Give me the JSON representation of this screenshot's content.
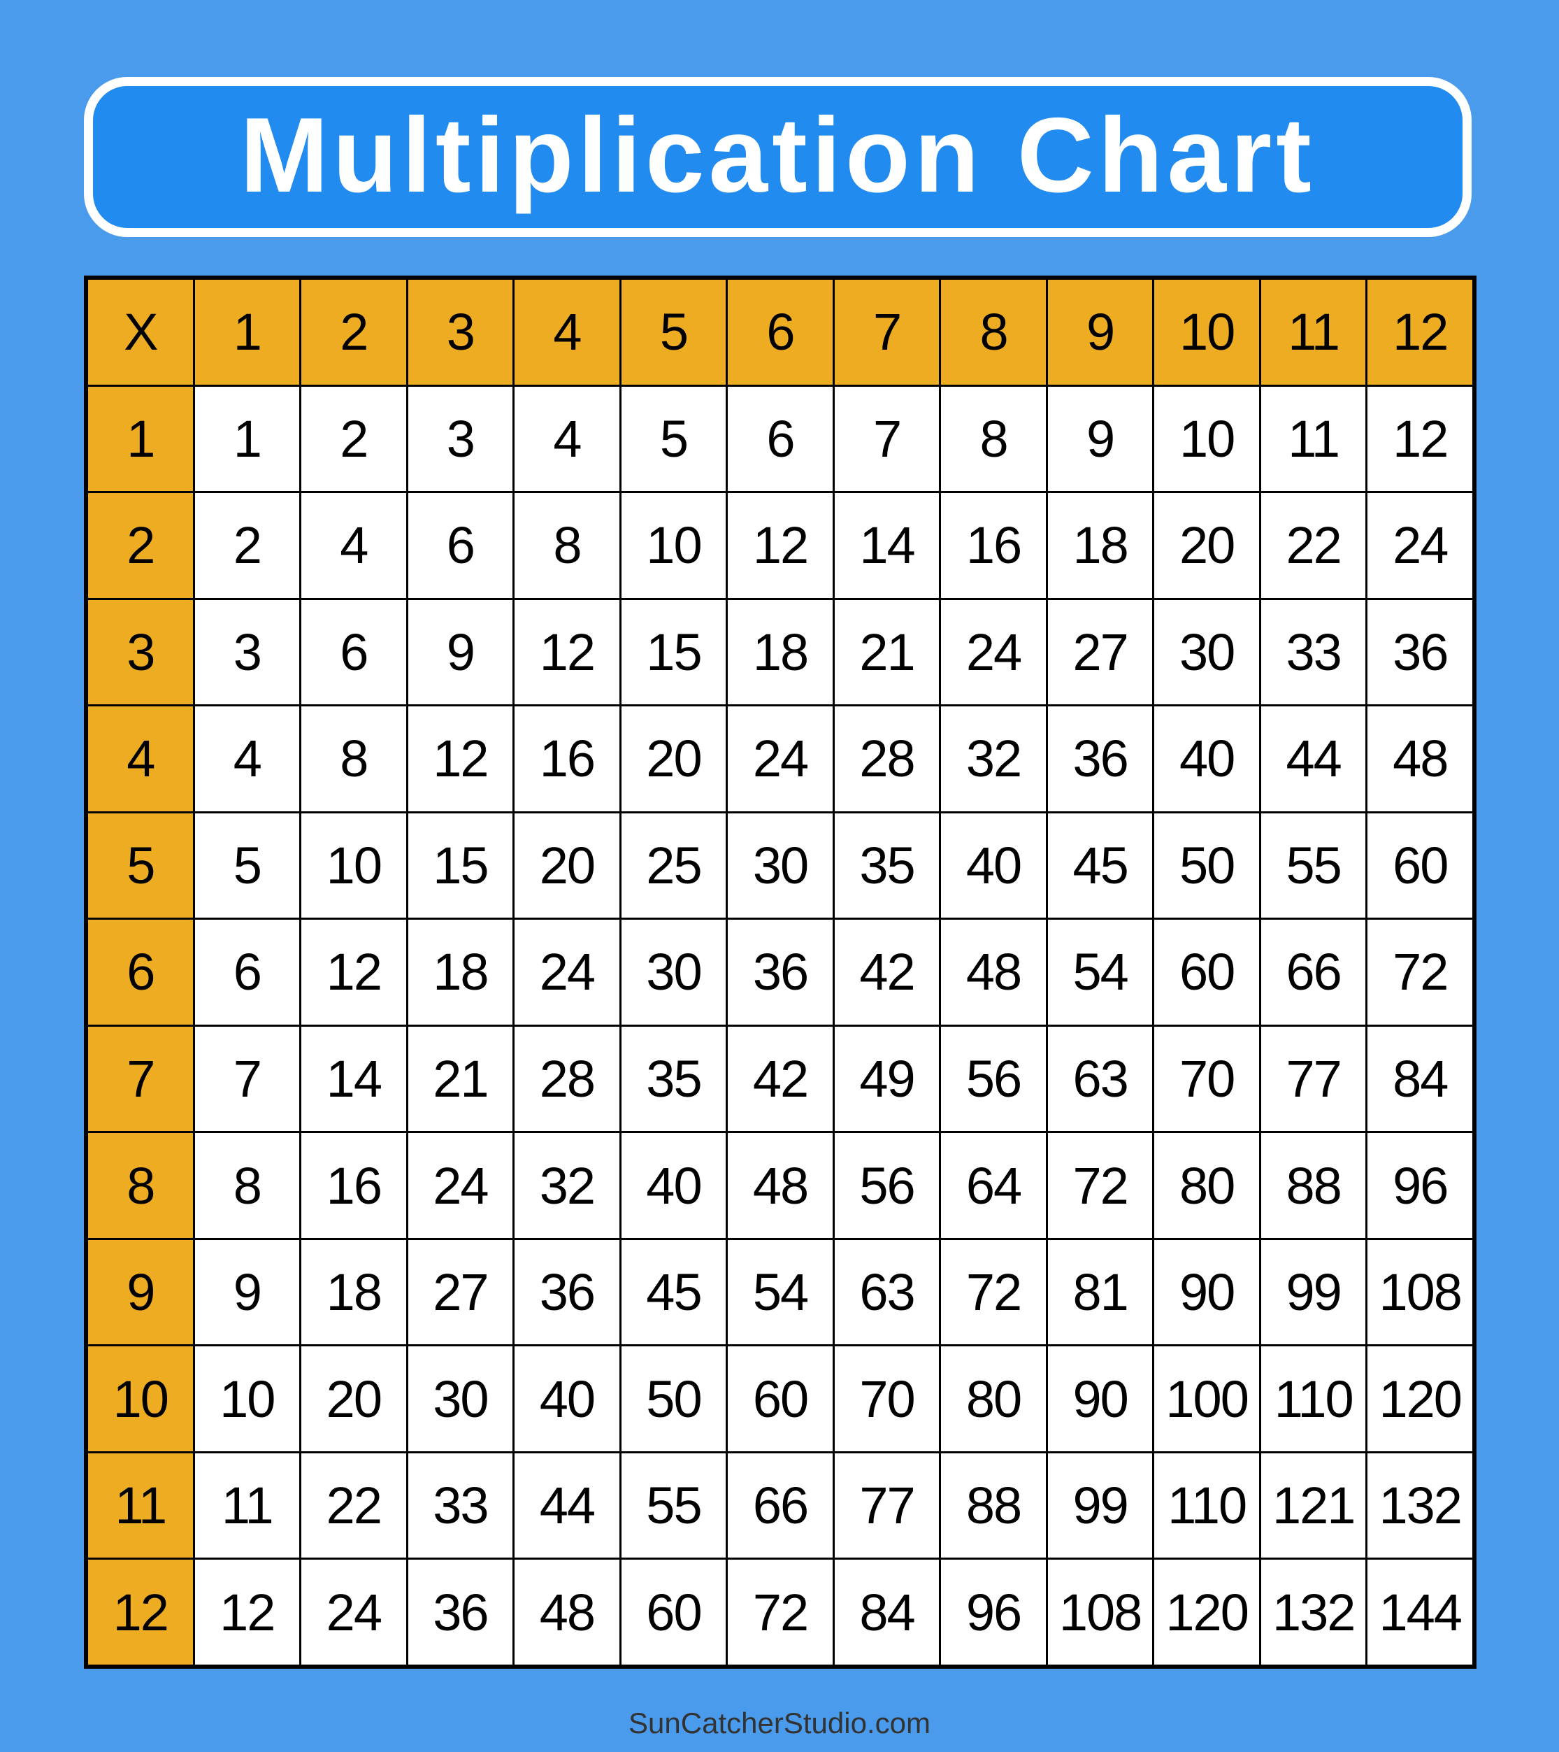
{
  "title": "Multiplication Chart",
  "footer": "SunCatcherStudio.com",
  "colors": {
    "background": "#4a9bec",
    "title_box": "#218bef",
    "header": "#eeac22",
    "cell": "#ffffff",
    "grid": "#000000"
  },
  "chart_data": {
    "type": "table",
    "corner": "X",
    "column_headers": [
      "1",
      "2",
      "3",
      "4",
      "5",
      "6",
      "7",
      "8",
      "9",
      "10",
      "11",
      "12"
    ],
    "row_headers": [
      "1",
      "2",
      "3",
      "4",
      "5",
      "6",
      "7",
      "8",
      "9",
      "10",
      "11",
      "12"
    ],
    "rows": [
      [
        1,
        2,
        3,
        4,
        5,
        6,
        7,
        8,
        9,
        10,
        11,
        12
      ],
      [
        2,
        4,
        6,
        8,
        10,
        12,
        14,
        16,
        18,
        20,
        22,
        24
      ],
      [
        3,
        6,
        9,
        12,
        15,
        18,
        21,
        24,
        27,
        30,
        33,
        36
      ],
      [
        4,
        8,
        12,
        16,
        20,
        24,
        28,
        32,
        36,
        40,
        44,
        48
      ],
      [
        5,
        10,
        15,
        20,
        25,
        30,
        35,
        40,
        45,
        50,
        55,
        60
      ],
      [
        6,
        12,
        18,
        24,
        30,
        36,
        42,
        48,
        54,
        60,
        66,
        72
      ],
      [
        7,
        14,
        21,
        28,
        35,
        42,
        49,
        56,
        63,
        70,
        77,
        84
      ],
      [
        8,
        16,
        24,
        32,
        40,
        48,
        56,
        64,
        72,
        80,
        88,
        96
      ],
      [
        9,
        18,
        27,
        36,
        45,
        54,
        63,
        72,
        81,
        90,
        99,
        108
      ],
      [
        10,
        20,
        30,
        40,
        50,
        60,
        70,
        80,
        90,
        100,
        110,
        120
      ],
      [
        11,
        22,
        33,
        44,
        55,
        66,
        77,
        88,
        99,
        110,
        121,
        132
      ],
      [
        12,
        24,
        36,
        48,
        60,
        72,
        84,
        96,
        108,
        120,
        132,
        144
      ]
    ]
  }
}
